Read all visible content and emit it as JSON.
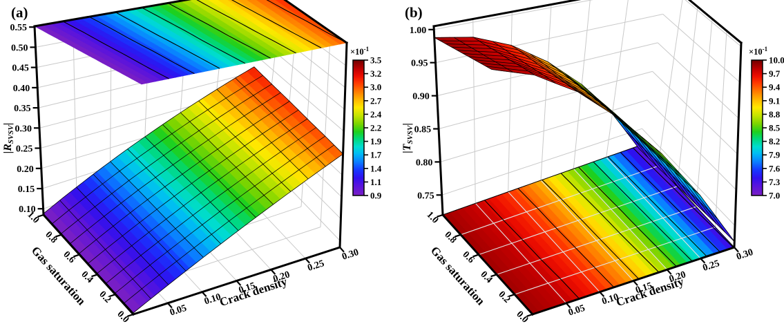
{
  "figure_labels": {
    "a": "(a)",
    "b": "(b)"
  },
  "colors": {
    "axis": "#000000",
    "wall_grid": "#c9c9c9",
    "floor_overlay_grid": "#e3e3e3",
    "contour_line": "#000000",
    "colormap_stops": [
      [
        0.0,
        "#7a1fc4"
      ],
      [
        0.07,
        "#5a14dc"
      ],
      [
        0.13,
        "#3010ee"
      ],
      [
        0.19,
        "#1638ff"
      ],
      [
        0.25,
        "#0a80ff"
      ],
      [
        0.31,
        "#00bcf4"
      ],
      [
        0.36,
        "#00dcd0"
      ],
      [
        0.42,
        "#00d878"
      ],
      [
        0.47,
        "#1ed01e"
      ],
      [
        0.53,
        "#7cd400"
      ],
      [
        0.59,
        "#c4e400"
      ],
      [
        0.65,
        "#ffe800"
      ],
      [
        0.71,
        "#ffb400"
      ],
      [
        0.77,
        "#ff7800"
      ],
      [
        0.83,
        "#ff3a00"
      ],
      [
        0.88,
        "#ee0e00"
      ],
      [
        0.93,
        "#c40000"
      ],
      [
        1.0,
        "#700000"
      ]
    ]
  },
  "panels": [
    {
      "id": "a",
      "label": "(a)",
      "z_axis": {
        "title_bar_left": "|",
        "title_main": "R",
        "title_sub": "SVSV",
        "title_bar_right": "|",
        "ticks": [
          "0.55",
          "0.50",
          "0.45",
          "0.40",
          "0.35",
          "0.30",
          "0.25",
          "0.20",
          "0.15",
          "0.10"
        ]
      },
      "gas_axis": {
        "title": "Gas saturation",
        "ticks": [
          "1.0",
          "0.8",
          "0.6",
          "0.4",
          "0.2",
          "0.0"
        ]
      },
      "crack_axis": {
        "title": "Crack density",
        "ticks": [
          "0.05",
          "0.10",
          "0.15",
          "0.20",
          "0.25",
          "0.30"
        ]
      },
      "colorbar": {
        "title_base": "×10",
        "title_exp": "-1",
        "labels": [
          "3.5",
          "3.2",
          "3.0",
          "2.7",
          "2.4",
          "2.2",
          "1.9",
          "1.7",
          "1.4",
          "1.1",
          "0.9"
        ]
      }
    },
    {
      "id": "b",
      "label": "(b)",
      "z_axis": {
        "title_bar_left": "|",
        "title_main": "T",
        "title_sub": "SVSV",
        "title_bar_right": "|",
        "ticks": [
          "1.00",
          "0.95",
          "0.90",
          "0.85",
          "0.80",
          "0.75"
        ]
      },
      "gas_axis": {
        "title": "Gas saturation",
        "ticks": [
          "1.0",
          "0.8",
          "0.6",
          "0.4",
          "0.2",
          "0.0"
        ]
      },
      "crack_axis": {
        "title": "Crack density",
        "ticks": [
          "0.05",
          "0.10",
          "0.15",
          "0.20",
          "0.25",
          "0.30"
        ]
      },
      "colorbar": {
        "title_base": "×10",
        "title_exp": "-1",
        "labels": [
          "10.0",
          "9.7",
          "9.4",
          "9.1",
          "8.8",
          "8.5",
          "8.2",
          "7.9",
          "7.6",
          "7.3",
          "7.0"
        ]
      }
    }
  ],
  "chart_data": [
    {
      "type": "surface3d",
      "panel": "a",
      "title": "(a)",
      "xlabel": "Crack density",
      "ylabel": "Gas saturation",
      "zlabel": "|R_SVSV|",
      "x": [
        0,
        0.05,
        0.1,
        0.15,
        0.2,
        0.25,
        0.3
      ],
      "y": [
        0,
        0.2,
        0.4,
        0.6,
        0.8,
        1.0
      ],
      "z_values": [
        [
          0.088,
          0.123,
          0.158,
          0.193,
          0.228,
          0.263,
          0.298
        ],
        [
          0.088,
          0.124,
          0.159,
          0.195,
          0.23,
          0.266,
          0.302
        ],
        [
          0.088,
          0.124,
          0.16,
          0.197,
          0.233,
          0.269,
          0.305
        ],
        [
          0.088,
          0.125,
          0.162,
          0.198,
          0.235,
          0.272,
          0.309
        ],
        [
          0.088,
          0.125,
          0.163,
          0.2,
          0.238,
          0.275,
          0.312
        ],
        [
          0.088,
          0.126,
          0.164,
          0.202,
          0.24,
          0.278,
          0.316
        ]
      ],
      "z_tick_values": [
        0.55,
        0.5,
        0.45,
        0.4,
        0.35,
        0.3,
        0.25,
        0.2,
        0.15,
        0.1
      ],
      "x_tick_values": [
        0.05,
        0.1,
        0.15,
        0.2,
        0.25,
        0.3
      ],
      "y_tick_values": [
        1.0,
        0.8,
        0.6,
        0.4,
        0.2,
        0.0
      ],
      "color_limits": [
        0.09,
        0.35
      ],
      "colorbar_scale": "×10⁻¹",
      "projection_plane": "top",
      "grid": true
    },
    {
      "type": "surface3d",
      "panel": "b",
      "title": "(b)",
      "xlabel": "Crack density",
      "ylabel": "Gas saturation",
      "zlabel": "|T_SVSV|",
      "x": [
        0,
        0.05,
        0.1,
        0.15,
        0.2,
        0.25,
        0.3
      ],
      "y": [
        0,
        0.2,
        0.4,
        0.6,
        0.8,
        1.0
      ],
      "z_values": [
        [
          0.988,
          0.979,
          0.956,
          0.918,
          0.868,
          0.804,
          0.728
        ],
        [
          0.988,
          0.979,
          0.955,
          0.917,
          0.866,
          0.802,
          0.726
        ],
        [
          0.988,
          0.978,
          0.954,
          0.916,
          0.864,
          0.8,
          0.723
        ],
        [
          0.988,
          0.978,
          0.953,
          0.915,
          0.863,
          0.798,
          0.721
        ],
        [
          0.988,
          0.977,
          0.953,
          0.914,
          0.861,
          0.796,
          0.718
        ],
        [
          0.988,
          0.977,
          0.952,
          0.912,
          0.86,
          0.794,
          0.716
        ]
      ],
      "z_tick_values": [
        1.0,
        0.95,
        0.9,
        0.85,
        0.8,
        0.75
      ],
      "x_tick_values": [
        0.05,
        0.1,
        0.15,
        0.2,
        0.25,
        0.3
      ],
      "y_tick_values": [
        1.0,
        0.8,
        0.6,
        0.4,
        0.2,
        0.0
      ],
      "color_limits": [
        0.7,
        1.0
      ],
      "colorbar_scale": "×10⁻¹",
      "projection_plane": "bottom",
      "grid": true
    }
  ]
}
